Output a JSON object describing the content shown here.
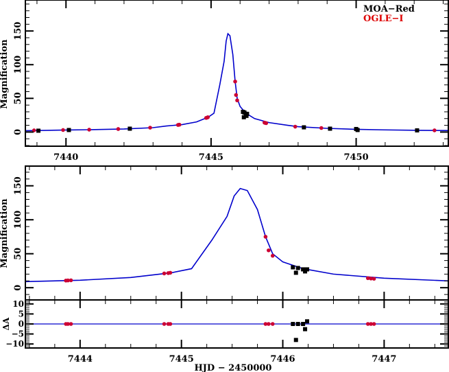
{
  "chart_data": [
    {
      "type": "scatter",
      "panel": "top",
      "xlabel": "",
      "ylabel": "Magnification",
      "xlim": [
        7438.6,
        7453.2
      ],
      "ylim": [
        -21,
        196
      ],
      "xticks": [
        7440,
        7445,
        7450
      ],
      "yticks": [
        0,
        50,
        100,
        150
      ],
      "legend": {
        "placement": "top-right",
        "entries": [
          {
            "name": "MOA−Red",
            "color": "#000000"
          },
          {
            "name": "OGLE−I",
            "color": "#dd0000"
          }
        ]
      }
    },
    {
      "type": "scatter",
      "panel": "middle",
      "xlabel": "",
      "ylabel": "Magnification",
      "xlim": [
        7443.46,
        7447.64
      ],
      "ylim": [
        -18,
        179
      ],
      "xticks": [
        7444,
        7445,
        7446,
        7447
      ],
      "yticks": [
        0,
        50,
        100,
        150
      ]
    },
    {
      "type": "scatter",
      "panel": "residual",
      "xlabel": "HJD − 2450000",
      "ylabel": "ΔA",
      "xlim": [
        7443.46,
        7447.64
      ],
      "ylim": [
        -12,
        12
      ],
      "xticks": [
        7444,
        7445,
        7446,
        7447
      ],
      "yticks": [
        -10,
        -5,
        0,
        5,
        10
      ]
    }
  ],
  "model": {
    "color": "#0000cc",
    "points": [
      [
        7438.6,
        2
      ],
      [
        7440,
        3
      ],
      [
        7441,
        3.6
      ],
      [
        7442,
        4.5
      ],
      [
        7443,
        6.5
      ],
      [
        7443.46,
        9
      ],
      [
        7444,
        11
      ],
      [
        7444.5,
        15
      ],
      [
        7444.9,
        22
      ],
      [
        7445.1,
        28
      ],
      [
        7445.3,
        70
      ],
      [
        7445.45,
        105
      ],
      [
        7445.52,
        135
      ],
      [
        7445.58,
        146
      ],
      [
        7445.65,
        143
      ],
      [
        7445.75,
        115
      ],
      [
        7445.83,
        75
      ],
      [
        7445.9,
        50
      ],
      [
        7446.0,
        38
      ],
      [
        7446.2,
        28
      ],
      [
        7446.5,
        20
      ],
      [
        7447,
        14
      ],
      [
        7447.64,
        10
      ],
      [
        7448,
        8
      ],
      [
        7449,
        5.5
      ],
      [
        7450,
        4
      ],
      [
        7451,
        3.2
      ],
      [
        7452,
        2.6
      ],
      [
        7453.2,
        2.2
      ]
    ]
  },
  "series": [
    {
      "name": "OGLE−I",
      "color": "#dd0000",
      "points": [
        [
          7437.8,
          2,
          0
        ],
        [
          7438.9,
          2.5,
          0
        ],
        [
          7439.9,
          3,
          0
        ],
        [
          7440.8,
          3.5,
          0
        ],
        [
          7441.8,
          4.5,
          0
        ],
        [
          7442.9,
          6.5,
          0
        ],
        [
          7443.86,
          10.5,
          0
        ],
        [
          7443.88,
          10.7,
          0
        ],
        [
          7443.91,
          10.9,
          0
        ],
        [
          7444.83,
          21,
          0
        ],
        [
          7444.87,
          21.5,
          0
        ],
        [
          7444.89,
          22,
          0
        ],
        [
          7445.83,
          75,
          0
        ],
        [
          7445.86,
          55,
          0
        ],
        [
          7445.9,
          47,
          0
        ],
        [
          7446.84,
          14,
          0
        ],
        [
          7446.87,
          13.5,
          0
        ],
        [
          7446.9,
          13.2,
          0
        ],
        [
          7447.9,
          8,
          0
        ],
        [
          7448.8,
          6,
          0
        ],
        [
          7452.7,
          2.5,
          0
        ]
      ]
    },
    {
      "name": "MOA−Red",
      "color": "#000000",
      "points": [
        [
          7438.2,
          2,
          0
        ],
        [
          7439.05,
          2,
          0
        ],
        [
          7440.1,
          3,
          0
        ],
        [
          7442.2,
          5,
          0
        ],
        [
          7446.1,
          30,
          0
        ],
        [
          7446.13,
          22,
          -8
        ],
        [
          7446.15,
          29,
          0
        ],
        [
          7446.2,
          27,
          0
        ],
        [
          7446.22,
          24,
          -2.6
        ],
        [
          7446.24,
          27,
          1.3
        ],
        [
          7448.2,
          7,
          0
        ],
        [
          7449.1,
          5,
          0
        ],
        [
          7450.0,
          4.5,
          0
        ],
        [
          7450.05,
          3,
          0
        ],
        [
          7452.1,
          2.5,
          0
        ]
      ]
    }
  ]
}
